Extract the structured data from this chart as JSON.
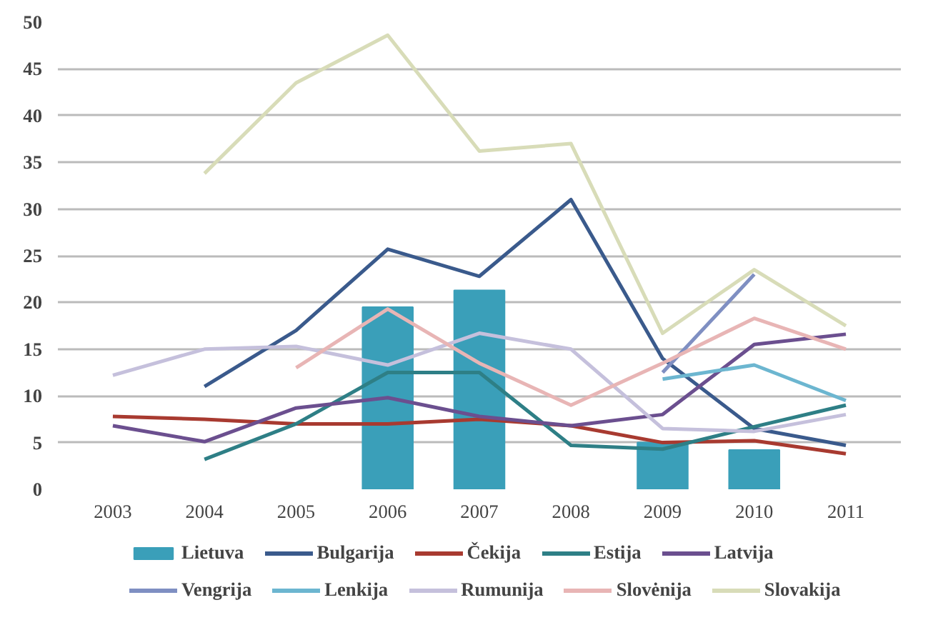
{
  "chart_data": {
    "type": "line",
    "categories": [
      "2003",
      "2004",
      "2005",
      "2006",
      "2007",
      "2008",
      "2009",
      "2010",
      "2011"
    ],
    "ylim": [
      0,
      50
    ],
    "yticks": [
      0,
      5,
      10,
      15,
      20,
      25,
      30,
      35,
      40,
      45,
      50
    ],
    "grid": "y",
    "legend": "bottom",
    "series": [
      {
        "name": "Lietuva",
        "type": "bar",
        "color": "#3a9fb9",
        "values": [
          null,
          null,
          null,
          19.5,
          21.3,
          null,
          5,
          4.2,
          null
        ]
      },
      {
        "name": "Bulgarija",
        "color": "#3a5a8c",
        "values": [
          null,
          11,
          17,
          25.7,
          22.8,
          31,
          14,
          6.5,
          4.7
        ]
      },
      {
        "name": "Čekija",
        "color": "#a83a30",
        "values": [
          7.8,
          7.5,
          7,
          7,
          7.5,
          6.8,
          5,
          5.2,
          3.8
        ]
      },
      {
        "name": "Estija",
        "color": "#2e7f86",
        "values": [
          null,
          3.2,
          7,
          12.5,
          12.5,
          4.7,
          4.3,
          6.7,
          9
        ]
      },
      {
        "name": "Latvija",
        "color": "#6b4f8f",
        "values": [
          6.8,
          5.1,
          8.7,
          9.8,
          7.8,
          6.8,
          8,
          15.5,
          16.6
        ]
      },
      {
        "name": "Vengrija",
        "color": "#7f8fc2",
        "values": [
          null,
          null,
          null,
          null,
          null,
          null,
          12.5,
          23,
          null
        ]
      },
      {
        "name": "Lenkija",
        "color": "#6cb6d0",
        "values": [
          null,
          null,
          null,
          null,
          null,
          null,
          11.8,
          13.3,
          9.5
        ]
      },
      {
        "name": "Rumunija",
        "color": "#c5c0dc",
        "values": [
          12.2,
          15,
          15.3,
          13.3,
          16.7,
          15,
          6.5,
          6.2,
          8
        ]
      },
      {
        "name": "Slovėnija",
        "color": "#e8b5b5",
        "values": [
          null,
          null,
          13,
          19.3,
          13.5,
          9,
          13.5,
          18.3,
          15
        ]
      },
      {
        "name": "Slovakija",
        "color": "#d8dcb8",
        "values": [
          null,
          33.8,
          43.5,
          48.6,
          36.2,
          37,
          16.7,
          23.5,
          17.5
        ]
      }
    ]
  }
}
